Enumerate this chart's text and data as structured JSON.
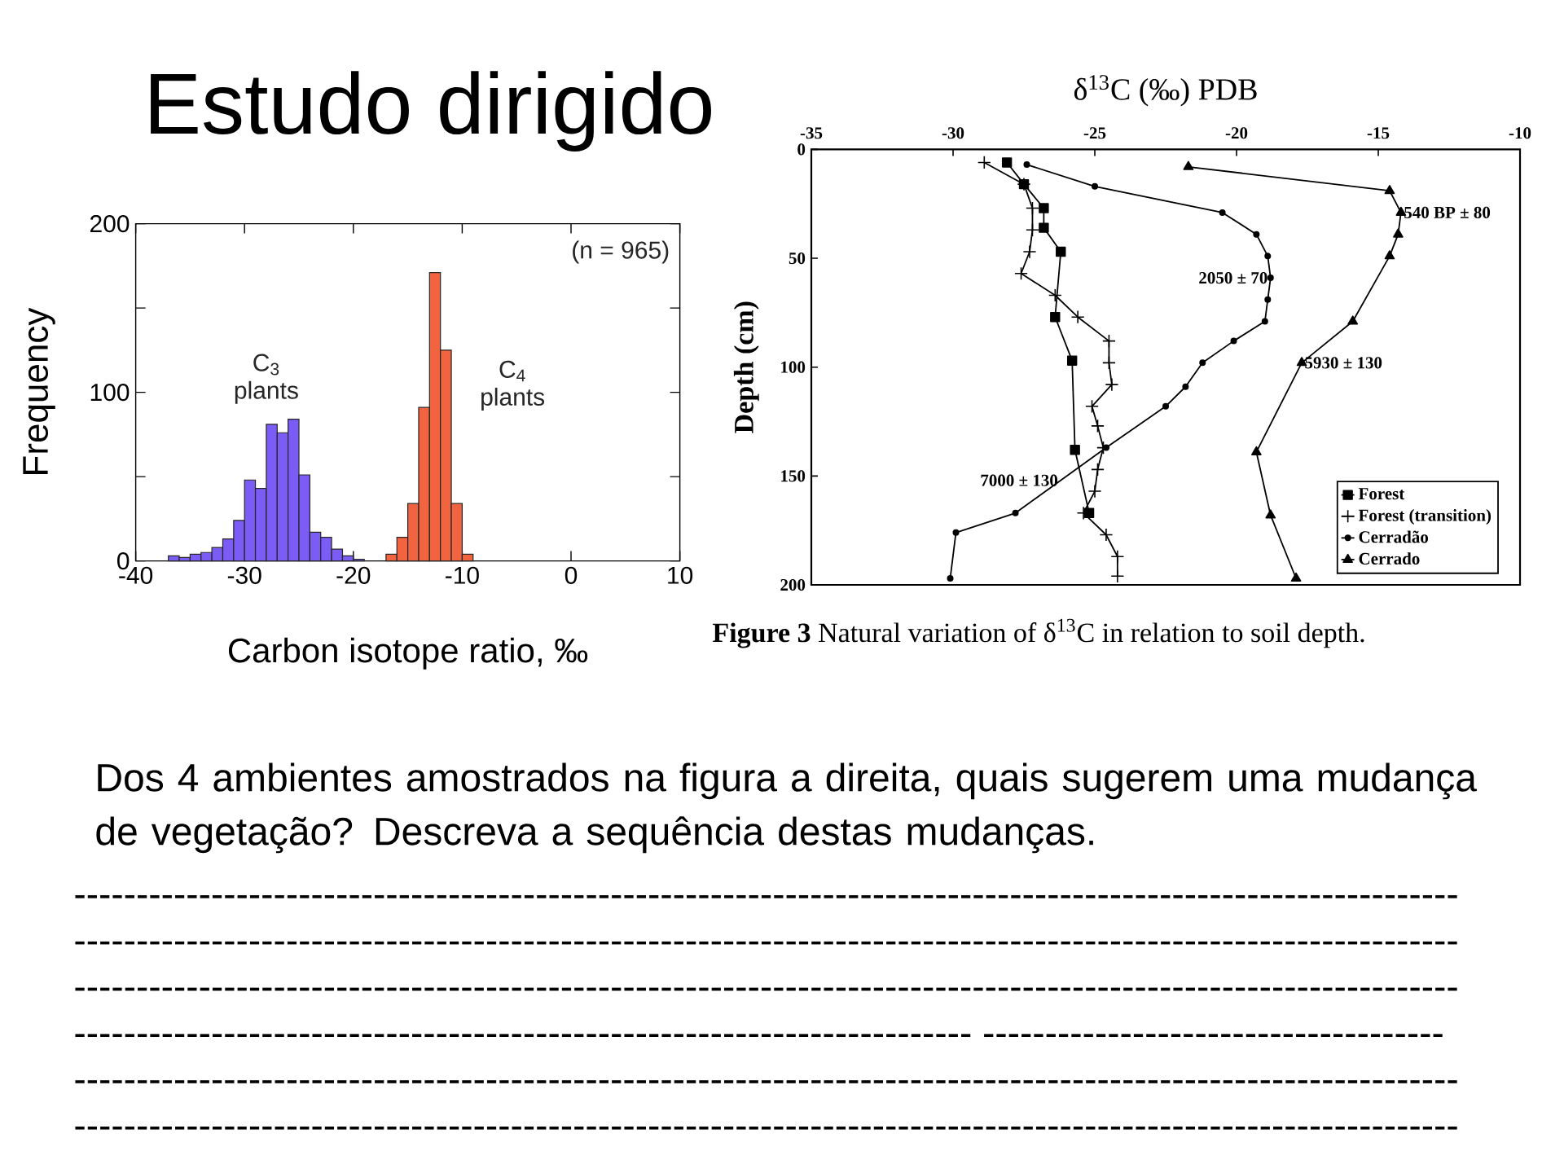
{
  "chart_data": [
    {
      "type": "other",
      "title": "Estudo dirigido",
      "annotations": [
        "Dos 4 ambientes amostrados na figura a direita, quais sugerem uma mudança de vegetação? Descreva a sequência destas mudanças.",
        "---------------------------------------------------------------------------------------------------------------",
        "---------------------------------------------------------------------------------------------------------------",
        "---------------------------------------------------------------------------------------------------------------",
        "------------------------------------------------------------------------ -------------------------------------",
        "---------------------------------------------------------------------------------------------------------------",
        "---------------------------------------------------------------------------------------------------------------"
      ]
    },
    {
      "type": "histogram",
      "xlabel": "Carbon isotope ratio, ‰",
      "ylabel": "Frequency",
      "annotations": [
        "(n = 965)"
      ],
      "bins": [
        -37,
        -36,
        -35,
        -34,
        -33,
        -32,
        -31,
        -30,
        -29,
        -28,
        -27,
        -26,
        -25,
        -24,
        -23,
        -22,
        -21,
        -20,
        -19,
        -18,
        -17,
        -16,
        -15,
        -14,
        -13,
        -12,
        -11,
        -10,
        -9
      ],
      "series": [
        {
          "name": "C$_{3}$ plants",
          "color": "#7b5cf5",
          "values": [
            3,
            2,
            4,
            5,
            8,
            13,
            24,
            48,
            43,
            81,
            76,
            84,
            51,
            17,
            14,
            7,
            3,
            1,
            null,
            null,
            null,
            null,
            null,
            null,
            null,
            null,
            null,
            null
          ]
        },
        {
          "name": "C$_{4}$ plants",
          "color": "#f26440",
          "values": [
            null,
            null,
            null,
            null,
            null,
            null,
            null,
            null,
            null,
            null,
            null,
            null,
            null,
            null,
            null,
            null,
            null,
            null,
            null,
            null,
            4,
            14,
            34,
            91,
            171,
            125,
            34,
            4
          ]
        }
      ],
      "xlim": [
        -40,
        10
      ],
      "xticks": [
        -40,
        -30,
        -20,
        -10,
        0,
        10
      ],
      "ylim": [
        0,
        200
      ],
      "yticks": [
        0,
        {
          "value": 50,
          "label": null
        },
        100,
        {
          "value": 150,
          "label": null
        },
        200
      ]
    },
    {
      "type": "line",
      "xlabel": "δ$^{13}$C (‰) PDB",
      "ylabel": "Depth (cm)",
      "annotations": [
        {
          "text": "540 BP ± 80",
          "x": -14.2,
          "y": 29
        },
        {
          "text": "2050 ± 70",
          "x": -18.8,
          "y": 59
        },
        {
          "text": "5930 ± 130",
          "x": -17.7,
          "y": 98
        },
        {
          "text": "7000 ± 130",
          "x": -26.2,
          "y": 152
        },
        "**Figure 3** Natural variation of δ$^{13}$C in relation to soil depth."
      ],
      "series": [
        {
          "name": "Forest",
          "color": "#000000",
          "marker": "square",
          "x": [
            -28.1,
            -27.5,
            -26.8,
            -26.8,
            -26.2,
            -26.4,
            -25.8,
            -25.7,
            -25.2
          ],
          "values": [
            6,
            16,
            27,
            36,
            47,
            77,
            97,
            138,
            167
          ]
        },
        {
          "name": "Forest (transition)",
          "color": "#000000",
          "marker": "cross",
          "x": [
            -28.9,
            -27.5,
            -27.2,
            -27.2,
            -27.3,
            -27.6,
            -26.4,
            -25.6,
            -24.5,
            -24.5,
            -24.4,
            -25.1,
            -24.9,
            -24.7,
            -24.9,
            -25.0,
            -25.4,
            -24.6,
            -24.2,
            -24.2
          ],
          "values": [
            6,
            16,
            27,
            37,
            47,
            57,
            67,
            77,
            88,
            98,
            108,
            118,
            127,
            137,
            147,
            157,
            167,
            177,
            187,
            196
          ]
        },
        {
          "name": "Cerradão",
          "color": "#000000",
          "marker": "circle",
          "x": [
            -27.4,
            -25.0,
            -20.5,
            -19.3,
            -18.9,
            -18.8,
            -18.9,
            -19.0,
            -20.1,
            -21.2,
            -21.8,
            -22.5,
            -24.6,
            -27.8,
            -29.9,
            -30.1
          ],
          "values": [
            7,
            17,
            29,
            39,
            49,
            59,
            69,
            79,
            88,
            98,
            109,
            118,
            137,
            167,
            176,
            197
          ]
        },
        {
          "name": "Cerrado",
          "color": "#000000",
          "marker": "triangle",
          "x": [
            -21.7,
            -14.6,
            -14.2,
            -14.3,
            -14.6,
            -15.9,
            -17.7,
            -19.3,
            -18.8,
            -17.9
          ],
          "values": [
            8,
            19,
            29,
            39,
            49,
            79,
            98,
            139,
            168,
            197
          ]
        }
      ],
      "xlim": [
        -35,
        -10
      ],
      "xticks": [
        -35,
        -30,
        -25,
        -20,
        -15,
        -10
      ],
      "ylim": [
        200,
        0
      ],
      "yticks": [
        0,
        50,
        100,
        150,
        200
      ],
      "legend": "bottom right"
    }
  ]
}
